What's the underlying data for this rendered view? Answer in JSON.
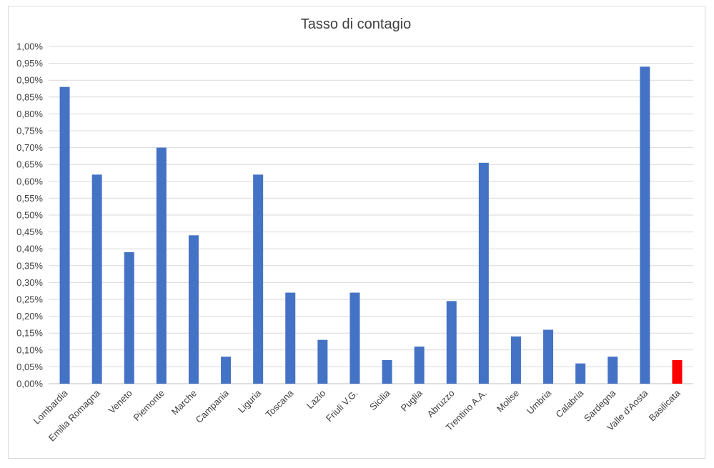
{
  "chart_data": {
    "type": "bar",
    "title": "Tasso di contagio",
    "xlabel": "",
    "ylabel": "",
    "ylim": [
      0,
      1.0
    ],
    "y_tick_step": 0.05,
    "y_tick_format": "percent_comma_2dp",
    "grid": true,
    "legend": "none",
    "colors": {
      "default": "#4472c4",
      "highlight": "#ff0000"
    },
    "highlight_category": "Basilicata",
    "categories": [
      "Lombardia",
      "Emilia Romagna",
      "Veneto",
      "Piemonte",
      "Marche",
      "Campania",
      "Liguria",
      "Toscana",
      "Lazio",
      "Friuli V.G.",
      "Sicilia",
      "Puglia",
      "Abruzzo",
      "Trentino A.A.",
      "Molise",
      "Umbria",
      "Calabria",
      "Sardegna",
      "Valle d'Aosta",
      "Basilicata"
    ],
    "values": [
      0.88,
      0.62,
      0.39,
      0.7,
      0.44,
      0.08,
      0.62,
      0.27,
      0.13,
      0.27,
      0.07,
      0.11,
      0.245,
      0.655,
      0.14,
      0.16,
      0.06,
      0.08,
      0.94,
      0.07
    ]
  }
}
